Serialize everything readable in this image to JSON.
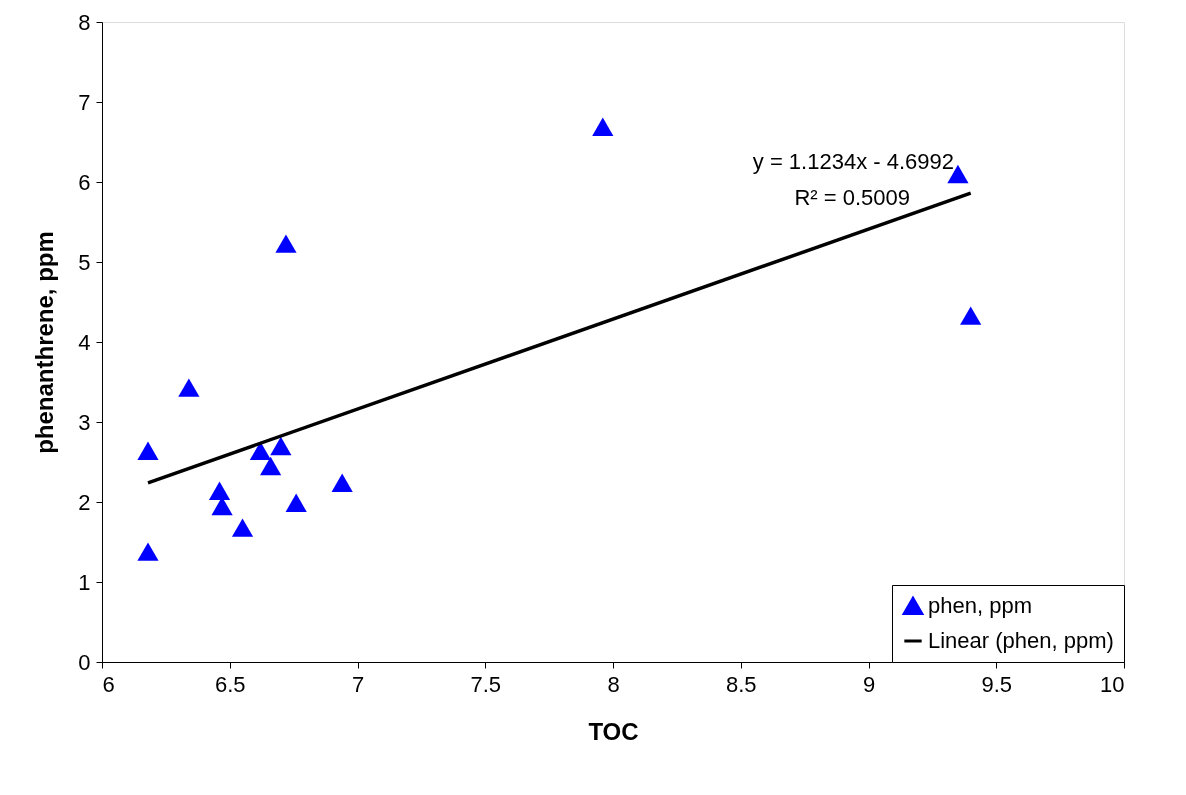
{
  "chart_data": {
    "type": "scatter",
    "xlabel": "TOC",
    "ylabel": "phenanthrene, ppm",
    "xlim": [
      6,
      10
    ],
    "xticks": [
      6,
      6.5,
      7,
      7.5,
      8,
      8.5,
      9,
      9.5,
      10
    ],
    "ylim": [
      0,
      8
    ],
    "yticks": [
      0,
      1,
      2,
      3,
      4,
      5,
      6,
      7,
      8
    ],
    "grid": false,
    "legend": "bottom right",
    "series": [
      {
        "name": "phen, ppm",
        "color": "#0000ff",
        "marker": "triangle",
        "x": [
          6.18,
          6.18,
          6.34,
          6.46,
          6.47,
          6.55,
          6.62,
          6.66,
          6.7,
          6.72,
          6.76,
          6.94,
          7.96,
          9.35,
          9.4
        ],
        "values": [
          1.38,
          2.64,
          3.43,
          2.14,
          1.95,
          1.68,
          2.64,
          2.45,
          2.7,
          5.23,
          1.99,
          2.24,
          6.69,
          6.1,
          4.33
        ]
      },
      {
        "name": "Linear (phen, ppm)",
        "color": "#000000",
        "type": "line",
        "marker": "none",
        "line_style": "solid",
        "x": [
          6.18,
          9.4
        ],
        "values": [
          2.24,
          5.86
        ]
      }
    ],
    "annotations": [
      "y = 1.1234x - 4.6992",
      "R² = 0.5009"
    ]
  }
}
